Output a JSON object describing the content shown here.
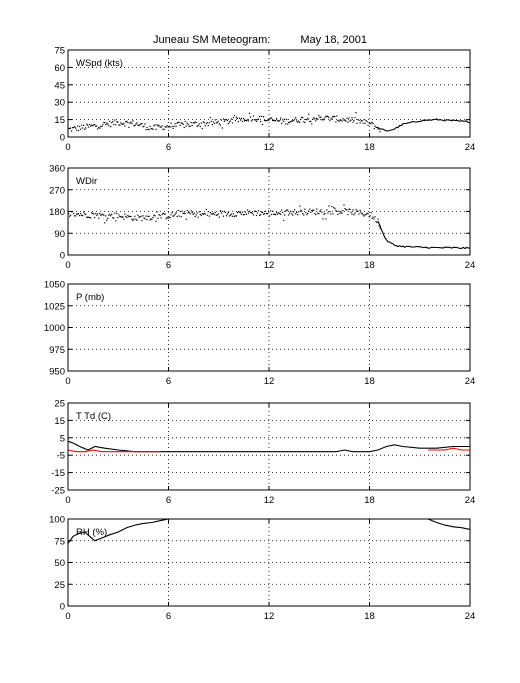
{
  "page": {
    "title": "Juneau SM Meteogram:",
    "date": "May 18, 2001"
  },
  "colors": {
    "axes": "#000000",
    "grid": "#000000",
    "series_primary": "#000000",
    "series_secondary": "#ff0000"
  },
  "chart_data": [
    {
      "id": "wspd",
      "type": "scatter",
      "label": "WSpd (kts)",
      "xlim": [
        0,
        24
      ],
      "ylim": [
        0,
        75
      ],
      "xticks": [
        0,
        6,
        12,
        18,
        24
      ],
      "yticks": [
        0,
        15,
        30,
        45,
        60,
        75
      ],
      "grid": true,
      "series": [
        {
          "color": "#000000",
          "style": "dots-then-line",
          "x": [
            0,
            1,
            2,
            3,
            4,
            5,
            6,
            7,
            8,
            9,
            10,
            11,
            12,
            13,
            14,
            15,
            16,
            17,
            18,
            18.5,
            19,
            19.5,
            20,
            21,
            22,
            23,
            24
          ],
          "y": [
            7,
            9,
            11,
            13,
            12,
            8,
            10,
            11,
            12,
            13,
            15,
            17,
            15,
            14,
            16,
            17,
            16,
            15,
            12,
            8,
            5,
            7,
            11,
            14,
            15,
            14,
            13
          ]
        }
      ]
    },
    {
      "id": "wdir",
      "type": "scatter",
      "label": "WDir",
      "xlim": [
        0,
        24
      ],
      "ylim": [
        0,
        360
      ],
      "xticks": [
        0,
        6,
        12,
        18,
        24
      ],
      "yticks": [
        0,
        90,
        180,
        270,
        360
      ],
      "grid": true,
      "series": [
        {
          "color": "#000000",
          "style": "dots-then-line",
          "x": [
            0,
            1,
            2,
            3,
            4,
            5,
            6,
            7,
            8,
            9,
            10,
            11,
            12,
            13,
            14,
            15,
            16,
            17,
            18,
            18.5,
            19,
            19.5,
            20,
            21,
            22,
            23,
            24
          ],
          "y": [
            175,
            170,
            165,
            165,
            155,
            160,
            165,
            175,
            170,
            172,
            175,
            178,
            175,
            178,
            180,
            182,
            185,
            180,
            170,
            140,
            60,
            40,
            35,
            32,
            30,
            30,
            28
          ]
        }
      ]
    },
    {
      "id": "pres",
      "type": "line",
      "label": "P (mb)",
      "xlim": [
        0,
        24
      ],
      "ylim": [
        950,
        1050
      ],
      "xticks": [
        0,
        6,
        12,
        18,
        24
      ],
      "yticks": [
        950,
        975,
        1000,
        1025,
        1050
      ],
      "grid": true,
      "series": []
    },
    {
      "id": "temp",
      "type": "line",
      "label": "T Td (C)",
      "xlim": [
        0,
        24
      ],
      "ylim": [
        -25,
        25
      ],
      "xticks": [
        0,
        6,
        12,
        18,
        24
      ],
      "yticks": [
        -25,
        -15,
        -5,
        5,
        15,
        25
      ],
      "grid": true,
      "series": [
        {
          "color": "#000000",
          "style": "line",
          "x": [
            0,
            0.3,
            0.7,
            1.2,
            1.6,
            2.2,
            3,
            4,
            5,
            6,
            7,
            8,
            10,
            12,
            14,
            16,
            16.5,
            17,
            18,
            18.5,
            19,
            19.5,
            20,
            21,
            22,
            23,
            24
          ],
          "y": [
            3,
            2,
            0,
            -2,
            0,
            -1,
            -2,
            -3,
            -3,
            -3,
            -3,
            -3,
            -3,
            -3,
            -3,
            -3,
            -2,
            -3,
            -3,
            -2,
            0,
            1,
            0,
            -1,
            -1,
            0,
            0
          ]
        },
        {
          "color": "#ff0000",
          "style": "line",
          "x": [
            0,
            0.5,
            1,
            1.5,
            2,
            3,
            4,
            5,
            5.5
          ],
          "y": [
            -2,
            -3,
            -3,
            -2,
            -3,
            -3,
            -3,
            -3,
            -3
          ]
        },
        {
          "color": "#ff0000",
          "style": "line",
          "x": [
            21.5,
            22,
            22.5,
            23,
            23.5,
            24
          ],
          "y": [
            -2,
            -2,
            -2,
            -1,
            -2,
            -2
          ]
        }
      ]
    },
    {
      "id": "rh",
      "type": "line",
      "label": "RH (%)",
      "xlim": [
        0,
        24
      ],
      "ylim": [
        0,
        100
      ],
      "xticks": [
        0,
        6,
        12,
        18,
        24
      ],
      "yticks": [
        0,
        25,
        50,
        75,
        100
      ],
      "grid": true,
      "series": [
        {
          "color": "#000000",
          "style": "line",
          "x": [
            0,
            0.3,
            0.6,
            1,
            1.3,
            1.6,
            2,
            2.5,
            3,
            3.5,
            4,
            4.5,
            5,
            5.5,
            6
          ],
          "y": [
            72,
            80,
            83,
            85,
            80,
            75,
            78,
            82,
            85,
            90,
            93,
            95,
            96,
            98,
            100
          ]
        },
        {
          "color": "#000000",
          "style": "line",
          "x": [
            21.5,
            22,
            22.5,
            23,
            23.5,
            24
          ],
          "y": [
            100,
            96,
            93,
            91,
            90,
            88
          ]
        }
      ]
    }
  ]
}
